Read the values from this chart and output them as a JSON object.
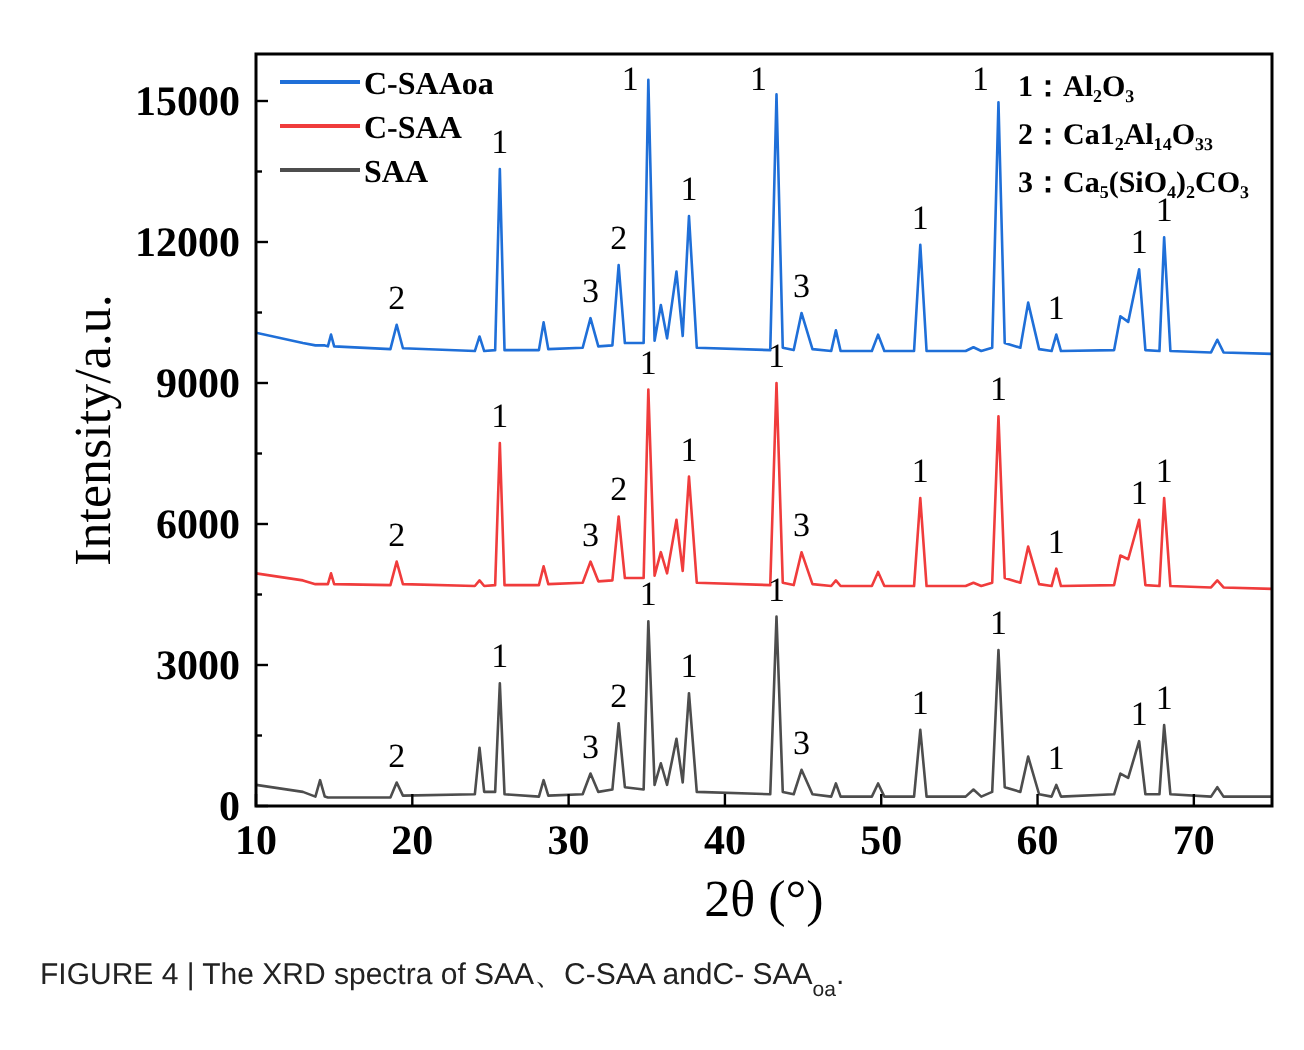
{
  "chart_data": {
    "type": "line",
    "xlabel": "2θ (°)",
    "ylabel": "Intensity/a.u.",
    "xlim": [
      10,
      75
    ],
    "ylim": [
      0,
      16000
    ],
    "xticks": [
      10,
      20,
      30,
      40,
      50,
      60,
      70
    ],
    "yticks": [
      0,
      {
        "value": 1500,
        "label": null
      },
      3000,
      {
        "value": 4500,
        "label": null
      },
      6000,
      {
        "value": 7500,
        "label": null
      },
      9000,
      {
        "value": 10500,
        "label": null
      },
      12000,
      {
        "value": 13500,
        "label": null
      },
      15000
    ],
    "legend": "top left",
    "x": [
      10,
      13,
      13.8,
      14.1,
      14.4,
      14.6,
      14.8,
      15.0,
      18.6,
      19.0,
      19.4,
      24.0,
      24.3,
      24.6,
      25.3,
      25.6,
      25.9,
      28.1,
      28.4,
      28.7,
      30.9,
      31.4,
      31.9,
      32.8,
      33.2,
      33.6,
      34.8,
      35.1,
      35.5,
      35.9,
      36.3,
      36.9,
      37.3,
      37.7,
      38.2,
      42.9,
      43.3,
      43.7,
      44.4,
      44.9,
      45.6,
      46.8,
      47.1,
      47.4,
      49.4,
      49.8,
      50.2,
      52.1,
      52.5,
      52.9,
      55.4,
      55.9,
      56.4,
      57.1,
      57.5,
      57.9,
      58.9,
      59.4,
      60.1,
      60.9,
      61.2,
      61.5,
      64.9,
      65.3,
      65.8,
      66.5,
      66.9,
      67.8,
      68.1,
      68.5,
      71.1,
      71.5,
      71.9,
      75
    ],
    "series": [
      {
        "name": "C-SAAoa",
        "color": "#1f6fd8",
        "values": [
          10070,
          9850,
          9800,
          9800,
          9800,
          9780,
          10030,
          9780,
          9720,
          10240,
          9740,
          9680,
          9990,
          9680,
          9700,
          13550,
          9700,
          9700,
          10290,
          9720,
          9750,
          10380,
          9780,
          9800,
          11510,
          9850,
          9850,
          15450,
          9900,
          10660,
          9950,
          11370,
          10000,
          12550,
          9750,
          9700,
          15140,
          9750,
          9700,
          10490,
          9720,
          9680,
          10120,
          9680,
          9680,
          10030,
          9680,
          9680,
          11940,
          9680,
          9680,
          9760,
          9680,
          9750,
          14970,
          9850,
          9750,
          10710,
          9720,
          9680,
          10030,
          9680,
          9700,
          10420,
          10300,
          11420,
          9700,
          9680,
          12100,
          9680,
          9650,
          9920,
          9650,
          9620
        ]
      },
      {
        "name": "C-SAA",
        "color": "#f03c3c",
        "values": [
          4950,
          4800,
          4720,
          4720,
          4720,
          4720,
          4950,
          4720,
          4700,
          5200,
          4720,
          4680,
          4800,
          4680,
          4700,
          7720,
          4700,
          4700,
          5100,
          4720,
          4750,
          5200,
          4780,
          4800,
          6160,
          4850,
          4850,
          8860,
          4900,
          5400,
          4950,
          6090,
          5000,
          7010,
          4750,
          4700,
          9000,
          4750,
          4700,
          5400,
          4720,
          4680,
          4800,
          4680,
          4680,
          4980,
          4680,
          4680,
          6550,
          4680,
          4680,
          4750,
          4680,
          4750,
          8290,
          4850,
          4750,
          5520,
          4720,
          4680,
          5050,
          4680,
          4700,
          5330,
          5250,
          6090,
          4700,
          4680,
          6550,
          4680,
          4650,
          4800,
          4650,
          4620
        ]
      },
      {
        "name": "SAA",
        "color": "#4d4d4d",
        "values": [
          450,
          300,
          200,
          550,
          200,
          180,
          180,
          180,
          180,
          500,
          220,
          250,
          1240,
          300,
          300,
          2610,
          250,
          200,
          550,
          220,
          250,
          690,
          300,
          350,
          1760,
          400,
          350,
          3930,
          450,
          910,
          450,
          1430,
          500,
          2400,
          300,
          250,
          4030,
          300,
          250,
          770,
          250,
          200,
          480,
          200,
          200,
          480,
          200,
          200,
          1620,
          200,
          200,
          350,
          200,
          300,
          3320,
          400,
          300,
          1050,
          250,
          200,
          450,
          200,
          250,
          690,
          600,
          1380,
          250,
          250,
          1720,
          250,
          200,
          400,
          200,
          200
        ]
      }
    ],
    "annotations": [
      "1：Al₂O₃",
      "2：Ca1₂Al₁₄O₃₃",
      "3：Ca₅(SiO₄)₂CO₃",
      {
        "text": "2",
        "x": 19.0,
        "y": 10240
      },
      {
        "text": "1",
        "x": 25.6,
        "y": 13550
      },
      {
        "text": "3",
        "x": 31.4,
        "y": 10380
      },
      {
        "text": "2",
        "x": 33.2,
        "y": 11510
      },
      {
        "text": "1",
        "x": 35.1,
        "y": 15450
      },
      {
        "text": "1",
        "x": 37.7,
        "y": 12550
      },
      {
        "text": "1",
        "x": 43.3,
        "y": 15140
      },
      {
        "text": "3",
        "x": 44.9,
        "y": 10490
      },
      {
        "text": "1",
        "x": 52.5,
        "y": 11940
      },
      {
        "text": "1",
        "x": 57.5,
        "y": 14970
      },
      {
        "text": "1",
        "x": 61.2,
        "y": 10030
      },
      {
        "text": "1",
        "x": 66.5,
        "y": 11420
      },
      {
        "text": "1",
        "x": 68.1,
        "y": 12100
      },
      {
        "text": "2",
        "x": 19.0,
        "y": 5200
      },
      {
        "text": "1",
        "x": 25.6,
        "y": 7720
      },
      {
        "text": "3",
        "x": 31.4,
        "y": 5200
      },
      {
        "text": "2",
        "x": 33.2,
        "y": 6160
      },
      {
        "text": "1",
        "x": 35.1,
        "y": 8860
      },
      {
        "text": "1",
        "x": 37.7,
        "y": 7010
      },
      {
        "text": "1",
        "x": 43.3,
        "y": 9000
      },
      {
        "text": "3",
        "x": 44.9,
        "y": 5400
      },
      {
        "text": "1",
        "x": 52.5,
        "y": 6550
      },
      {
        "text": "1",
        "x": 57.5,
        "y": 8290
      },
      {
        "text": "1",
        "x": 61.2,
        "y": 5050
      },
      {
        "text": "1",
        "x": 66.5,
        "y": 6090
      },
      {
        "text": "1",
        "x": 68.1,
        "y": 6550
      },
      {
        "text": "2",
        "x": 19.0,
        "y": 500
      },
      {
        "text": "1",
        "x": 25.6,
        "y": 2610
      },
      {
        "text": "3",
        "x": 31.4,
        "y": 690
      },
      {
        "text": "2",
        "x": 33.2,
        "y": 1760
      },
      {
        "text": "1",
        "x": 35.1,
        "y": 3930
      },
      {
        "text": "1",
        "x": 37.7,
        "y": 2400
      },
      {
        "text": "1",
        "x": 43.3,
        "y": 4030
      },
      {
        "text": "3",
        "x": 44.9,
        "y": 770
      },
      {
        "text": "1",
        "x": 52.5,
        "y": 1620
      },
      {
        "text": "1",
        "x": 57.5,
        "y": 3320
      },
      {
        "text": "1",
        "x": 61.2,
        "y": 450
      },
      {
        "text": "1",
        "x": 66.5,
        "y": 1380
      },
      {
        "text": "1",
        "x": 68.1,
        "y": 1720
      },
      "FIGURE 4 | The XRD spectra of SAA、C-SAA andC- SAA$_{oa}$."
    ]
  }
}
